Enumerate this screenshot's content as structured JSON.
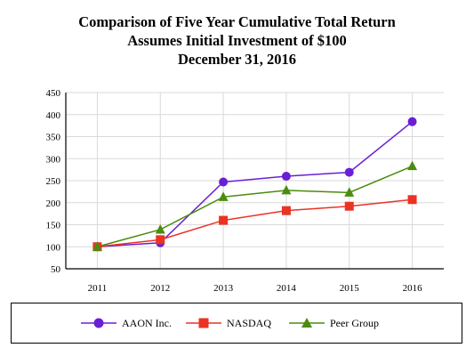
{
  "titles": {
    "line1": "Comparison of Five Year Cumulative Total Return",
    "line2": "Assumes Initial Investment of $100",
    "line3": "December 31, 2016"
  },
  "chart_data": {
    "type": "line",
    "title": "Comparison of Five Year Cumulative Total Return",
    "subtitle": "Assumes Initial Investment of $100",
    "subtitle2": "December 31, 2016",
    "xlabel": "",
    "ylabel": "",
    "categories": [
      "2011",
      "2012",
      "2013",
      "2014",
      "2015",
      "2016"
    ],
    "ylim": [
      50,
      450
    ],
    "yticks": [
      450,
      400,
      350,
      300,
      250,
      200,
      150,
      100,
      50
    ],
    "grid": true,
    "legend_position": "bottom",
    "series": [
      {
        "name": "AAON Inc.",
        "color": "#6a1fd6",
        "marker": "circle",
        "values": [
          100,
          109,
          247,
          260,
          269,
          384
        ]
      },
      {
        "name": "NASDAQ",
        "color": "#ea3323",
        "marker": "square",
        "values": [
          100,
          116,
          160,
          182,
          192,
          207
        ]
      },
      {
        "name": "Peer Group",
        "color": "#4b8c0e",
        "marker": "triangle",
        "values": [
          100,
          139,
          213,
          228,
          223,
          283
        ]
      }
    ]
  }
}
